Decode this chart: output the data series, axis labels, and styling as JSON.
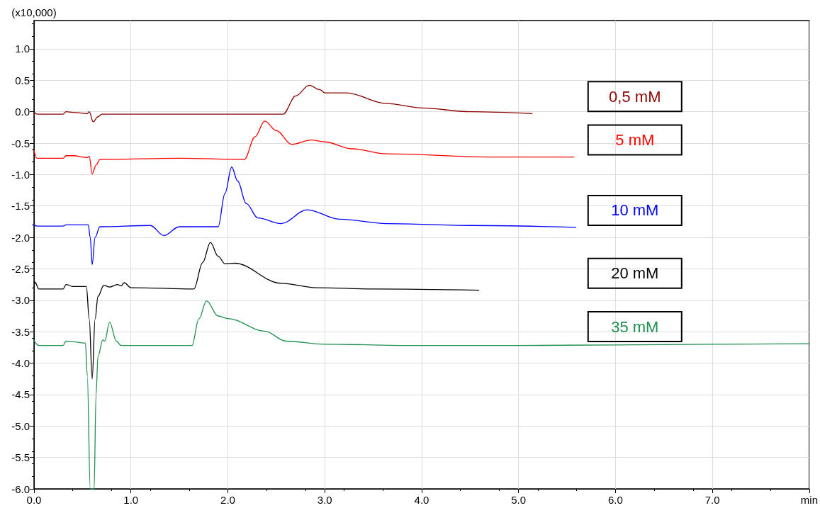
{
  "chart_data": {
    "type": "line",
    "ylabel": "(x10,000)",
    "xlim": [
      0,
      8
    ],
    "xticks": [
      {
        "value": 0,
        "label": "0.0"
      },
      {
        "value": 1,
        "label": "1.0"
      },
      {
        "value": 2,
        "label": "2.0"
      },
      {
        "value": 3,
        "label": "3.0"
      },
      {
        "value": 4,
        "label": "4.0"
      },
      {
        "value": 5,
        "label": "5.0"
      },
      {
        "value": 6,
        "label": "6.0"
      },
      {
        "value": 7,
        "label": "7.0"
      },
      {
        "value": 8,
        "label": "min"
      }
    ],
    "ylim": [
      -6,
      1.45
    ],
    "yticks": [
      {
        "value": -6,
        "label": "-6.0"
      },
      -5.5,
      {
        "value": -5,
        "label": "-5.0"
      },
      -4.5,
      {
        "value": -4,
        "label": "-4.0"
      },
      -3.5,
      {
        "value": -3,
        "label": "-3.0"
      },
      -2.5,
      {
        "value": -2,
        "label": "-2.0"
      },
      -1.5,
      {
        "value": -1,
        "label": "-1.0"
      },
      -0.5,
      {
        "value": 0,
        "label": "0.0"
      },
      0.5,
      {
        "value": 1,
        "label": "1.0"
      }
    ],
    "grid": true,
    "legend": false,
    "marker": "none",
    "line_style": "solid",
    "series": [
      {
        "name": "0,5 mM",
        "color": "#8b0000",
        "x": [
          0,
          0.03,
          0.3,
          0.33,
          0.4,
          0.55,
          0.57,
          0.61,
          0.66,
          0.7,
          1.5,
          2.57,
          2.7,
          2.84,
          2.95,
          3.0,
          3.22,
          3.64,
          4.0,
          4.5,
          5.14
        ],
        "values": [
          0.0,
          -0.04,
          -0.04,
          0.0,
          -0.01,
          -0.03,
          0.0,
          -0.16,
          -0.08,
          -0.04,
          -0.04,
          -0.04,
          0.25,
          0.42,
          0.35,
          0.3,
          0.3,
          0.13,
          0.06,
          0.0,
          -0.03
        ]
      },
      {
        "name": "5 mM",
        "color": "#ff0000",
        "x": [
          0,
          0.03,
          0.3,
          0.33,
          0.4,
          0.55,
          0.57,
          0.6,
          0.64,
          0.68,
          1.5,
          2.17,
          2.28,
          2.38,
          2.5,
          2.66,
          2.86,
          3.0,
          3.28,
          3.64,
          4.72,
          5.57
        ],
        "values": [
          -0.62,
          -0.74,
          -0.74,
          -0.7,
          -0.7,
          -0.73,
          -0.71,
          -0.99,
          -0.85,
          -0.76,
          -0.74,
          -0.76,
          -0.4,
          -0.15,
          -0.3,
          -0.52,
          -0.45,
          -0.48,
          -0.59,
          -0.67,
          -0.72,
          -0.72
        ]
      },
      {
        "name": "10 mM",
        "color": "#0000ff",
        "x": [
          0,
          0.03,
          0.3,
          0.33,
          0.4,
          0.56,
          0.58,
          0.6,
          0.63,
          0.68,
          1.2,
          1.34,
          1.5,
          1.9,
          1.97,
          2.04,
          2.1,
          2.19,
          2.31,
          2.55,
          2.82,
          3.15,
          3.64,
          4.5,
          5.59
        ],
        "values": [
          -1.8,
          -1.82,
          -1.82,
          -1.8,
          -1.8,
          -1.8,
          -2.0,
          -2.43,
          -2.0,
          -1.83,
          -1.81,
          -1.97,
          -1.83,
          -1.83,
          -1.3,
          -0.88,
          -1.1,
          -1.46,
          -1.69,
          -1.78,
          -1.56,
          -1.71,
          -1.78,
          -1.81,
          -1.84
        ]
      },
      {
        "name": "20 mM",
        "color": "#000000",
        "x": [
          0,
          0.01,
          0.05,
          0.3,
          0.33,
          0.4,
          0.54,
          0.57,
          0.6,
          0.63,
          0.66,
          0.72,
          0.78,
          0.86,
          0.9,
          0.93,
          1.0,
          1.65,
          1.74,
          1.82,
          1.9,
          1.97,
          2.07,
          2.55,
          2.91,
          3.5,
          4.59
        ],
        "values": [
          -2.8,
          -2.71,
          -2.82,
          -2.82,
          -2.75,
          -2.78,
          -2.78,
          -3.3,
          -4.25,
          -3.3,
          -2.94,
          -2.76,
          -2.79,
          -2.75,
          -2.77,
          -2.72,
          -2.8,
          -2.82,
          -2.4,
          -2.08,
          -2.3,
          -2.42,
          -2.41,
          -2.73,
          -2.8,
          -2.82,
          -2.84
        ]
      },
      {
        "name": "35 mM",
        "color": "#1f8f4f",
        "x": [
          0,
          0.05,
          0.3,
          0.33,
          0.4,
          0.53,
          0.55,
          0.58,
          0.62,
          0.64,
          0.66,
          0.71,
          0.73,
          0.78,
          0.85,
          0.9,
          1.63,
          1.7,
          1.78,
          1.9,
          2.0,
          2.38,
          2.6,
          3.0,
          4.0,
          5.0,
          6.0,
          7.0,
          8.0
        ],
        "values": [
          -3.64,
          -3.72,
          -3.72,
          -3.65,
          -3.66,
          -3.68,
          -4.2,
          -6.0,
          -6.0,
          -4.5,
          -3.89,
          -3.63,
          -3.65,
          -3.35,
          -3.65,
          -3.72,
          -3.72,
          -3.3,
          -3.01,
          -3.25,
          -3.29,
          -3.49,
          -3.65,
          -3.7,
          -3.72,
          -3.72,
          -3.71,
          -3.7,
          -3.69
        ]
      }
    ]
  }
}
